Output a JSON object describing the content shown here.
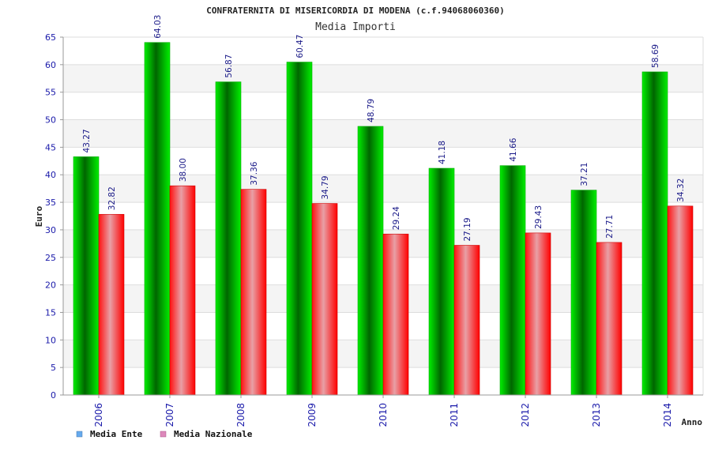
{
  "chart_data": {
    "type": "bar",
    "title": "CONFRATERNITA DI MISERICORDIA DI MODENA (c.f.94068060360)",
    "subtitle": "Media Importi",
    "xlabel": "Anno",
    "ylabel": "Euro",
    "ylim": [
      0,
      65
    ],
    "yticks": [
      "0",
      "5",
      "10",
      "15",
      "20",
      "25",
      "30",
      "35",
      "40",
      "45",
      "50",
      "55",
      "60",
      "65"
    ],
    "categories": [
      "2006",
      "2007",
      "2008",
      "2009",
      "2010",
      "2011",
      "2012",
      "2013",
      "2014"
    ],
    "series": [
      {
        "name": "Media Ente",
        "color": "#00cc00",
        "legend_color": "#66aaee",
        "values": [
          43.27,
          64.03,
          56.87,
          60.47,
          48.79,
          41.18,
          41.66,
          37.21,
          58.69
        ],
        "labels": [
          "43.27",
          "64.03",
          "56.87",
          "60.47",
          "48.79",
          "41.18",
          "41.66",
          "37.21",
          "58.69"
        ]
      },
      {
        "name": "Media Nazionale",
        "color": "#ff0000",
        "legend_color": "#dd88bb",
        "values": [
          32.82,
          38.0,
          37.36,
          34.79,
          29.24,
          27.19,
          29.43,
          27.71,
          34.32
        ],
        "labels": [
          "32.82",
          "38.00",
          "37.36",
          "34.79",
          "29.24",
          "27.19",
          "29.43",
          "27.71",
          "34.32"
        ]
      }
    ],
    "grid": true,
    "legend_position": "bottom-left"
  }
}
